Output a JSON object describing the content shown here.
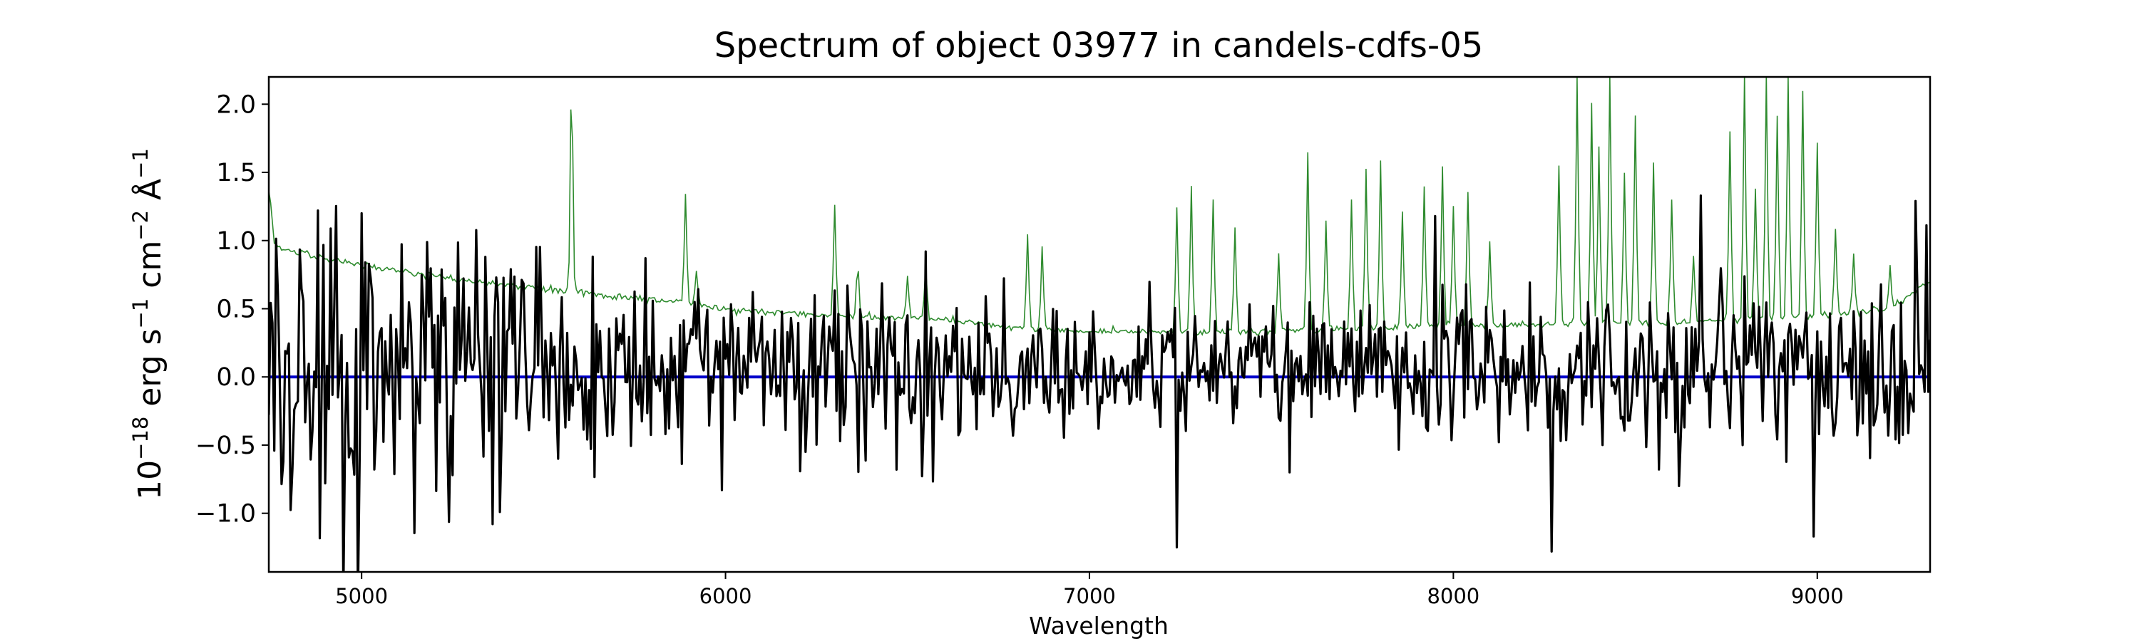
{
  "chart_data": {
    "type": "line",
    "title": "Spectrum of object 03977 in candels-cdfs-05",
    "xlabel": "Wavelength",
    "ylabel_parts": {
      "base": "10",
      "exp1": "−18",
      "unit_a": " erg s",
      "exp2": "−1",
      "unit_b": " cm",
      "exp3": "−2",
      "unit_c": " Å",
      "exp4": "−1"
    },
    "xlim": [
      4745,
      9310
    ],
    "ylim": [
      -1.43,
      2.2
    ],
    "xticks": [
      5000,
      6000,
      7000,
      8000,
      9000
    ],
    "xtick_labels": [
      "5000",
      "6000",
      "7000",
      "8000",
      "9000"
    ],
    "yticks": [
      -1.0,
      -0.5,
      0.0,
      0.5,
      1.0,
      1.5,
      2.0
    ],
    "ytick_labels": [
      "−1.0",
      "−0.5",
      "0.0",
      "0.5",
      "1.0",
      "1.5",
      "2.0"
    ],
    "grid": false,
    "series": [
      {
        "role": "noise",
        "color": "#2e8b2e",
        "continuum": [
          [
            4745,
            1.4
          ],
          [
            4760,
            0.98
          ],
          [
            4800,
            0.92
          ],
          [
            5000,
            0.82
          ],
          [
            5200,
            0.74
          ],
          [
            5400,
            0.67
          ],
          [
            5600,
            0.62
          ],
          [
            5800,
            0.57
          ],
          [
            6000,
            0.5
          ],
          [
            6200,
            0.46
          ],
          [
            6400,
            0.44
          ],
          [
            6600,
            0.42
          ],
          [
            6800,
            0.36
          ],
          [
            7000,
            0.34
          ],
          [
            7200,
            0.33
          ],
          [
            7400,
            0.33
          ],
          [
            7600,
            0.34
          ],
          [
            7800,
            0.36
          ],
          [
            8000,
            0.38
          ],
          [
            8200,
            0.38
          ],
          [
            8400,
            0.39
          ],
          [
            8600,
            0.4
          ],
          [
            8800,
            0.42
          ],
          [
            9000,
            0.44
          ],
          [
            9200,
            0.5
          ],
          [
            9310,
            0.7
          ]
        ],
        "lines": [
          [
            5577,
            2.2
          ],
          [
            5890,
            1.35
          ],
          [
            5920,
            0.8
          ],
          [
            6300,
            1.28
          ],
          [
            6363,
            0.85
          ],
          [
            6500,
            0.75
          ],
          [
            6550,
            0.82
          ],
          [
            6830,
            1.05
          ],
          [
            6870,
            0.95
          ],
          [
            7240,
            1.25
          ],
          [
            7280,
            1.4
          ],
          [
            7340,
            1.3
          ],
          [
            7400,
            1.1
          ],
          [
            7520,
            0.9
          ],
          [
            7600,
            1.65
          ],
          [
            7650,
            1.15
          ],
          [
            7720,
            1.3
          ],
          [
            7760,
            1.55
          ],
          [
            7800,
            1.6
          ],
          [
            7860,
            1.2
          ],
          [
            7920,
            1.4
          ],
          [
            7970,
            1.55
          ],
          [
            8000,
            1.25
          ],
          [
            8040,
            1.35
          ],
          [
            8100,
            1.0
          ],
          [
            8290,
            1.55
          ],
          [
            8340,
            2.2
          ],
          [
            8380,
            2.0
          ],
          [
            8400,
            1.7
          ],
          [
            8430,
            2.2
          ],
          [
            8470,
            1.5
          ],
          [
            8500,
            1.9
          ],
          [
            8550,
            1.6
          ],
          [
            8600,
            1.3
          ],
          [
            8660,
            0.9
          ],
          [
            8760,
            1.8
          ],
          [
            8800,
            2.2
          ],
          [
            8830,
            1.4
          ],
          [
            8860,
            2.2
          ],
          [
            8890,
            1.9
          ],
          [
            8920,
            2.2
          ],
          [
            8960,
            2.1
          ],
          [
            9000,
            1.7
          ],
          [
            9050,
            1.1
          ],
          [
            9100,
            0.9
          ],
          [
            9200,
            0.8
          ]
        ]
      },
      {
        "role": "model",
        "color": "#0000cc",
        "values": [
          [
            4745,
            0.0
          ],
          [
            9310,
            0.0
          ]
        ]
      },
      {
        "role": "flux",
        "color": "#000000",
        "features": [
          [
            4880,
            1.22
          ],
          [
            4900,
            -0.78
          ],
          [
            4785,
            -0.62
          ],
          [
            5000,
            1.2
          ],
          [
            5250,
            -0.72
          ],
          [
            5780,
            0.87
          ],
          [
            5990,
            -0.83
          ],
          [
            6550,
            0.92
          ],
          [
            7240,
            -1.25
          ],
          [
            8270,
            -1.28
          ],
          [
            8620,
            -0.8
          ],
          [
            8680,
            1.33
          ],
          [
            8990,
            -1.17
          ],
          [
            9270,
            1.29
          ],
          [
            7950,
            1.18
          ],
          [
            7550,
            -0.7
          ],
          [
            5540,
            -0.6
          ],
          [
            6220,
            -0.55
          ]
        ]
      }
    ]
  }
}
